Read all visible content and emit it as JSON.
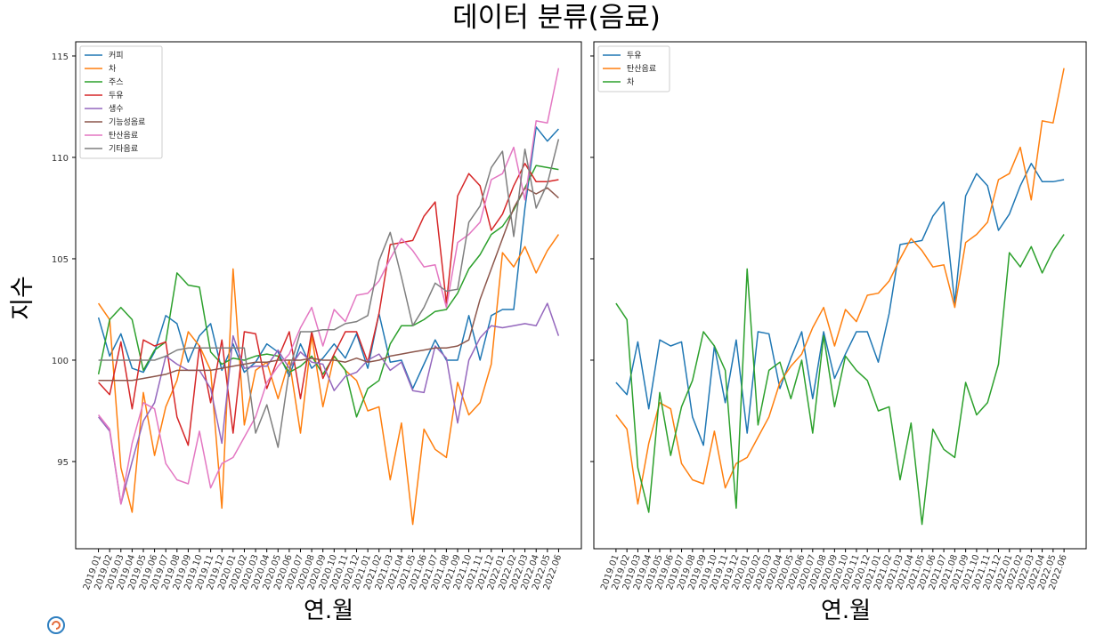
{
  "figure": {
    "title": "데이터 분류(음료)"
  },
  "colors": [
    "#1f77b4",
    "#ff7f0e",
    "#2ca02c",
    "#d62728",
    "#9467bd",
    "#8c564b",
    "#e377c2",
    "#7f7f7f"
  ],
  "chart_data": [
    {
      "type": "line",
      "xlabel": "연.월",
      "ylabel": "지수",
      "ylim": [
        90.7,
        115.7
      ],
      "yticks": [
        95,
        100,
        105,
        110,
        115
      ],
      "legend": "top-left",
      "grid": false,
      "x": [
        "2019.01",
        "2019.02",
        "2019.03",
        "2019.04",
        "2019.05",
        "2019.06",
        "2019.07",
        "2019.08",
        "2019.09",
        "2019.10",
        "2019.11",
        "2019.12",
        "2020.01",
        "2020.02",
        "2020.03",
        "2020.04",
        "2020.05",
        "2020.06",
        "2020.07",
        "2020.08",
        "2020.09",
        "2020.10",
        "2020.11",
        "2020.12",
        "2021.01",
        "2021.02",
        "2021.03",
        "2021.04",
        "2021.05",
        "2021.06",
        "2021.07",
        "2021.08",
        "2021.09",
        "2021.10",
        "2021.11",
        "2021.12",
        "2022.01",
        "2022.02",
        "2022.03",
        "2022.04",
        "2022.05",
        "2022.06"
      ],
      "series": [
        {
          "name": "커피",
          "values": [
            102.1,
            100.2,
            101.3,
            99.6,
            99.4,
            100.4,
            102.2,
            101.8,
            99.9,
            101.2,
            101.8,
            99.5,
            100.8,
            99.4,
            99.9,
            100.8,
            100.4,
            99.2,
            100.8,
            99.6,
            100.1,
            100.8,
            100.1,
            101.3,
            99.6,
            102.3,
            99.9,
            100.0,
            98.6,
            99.8,
            101.0,
            100.0,
            100.0,
            102.2,
            100.0,
            102.2,
            102.5,
            102.5,
            107.5,
            111.5,
            110.8,
            111.4
          ]
        },
        {
          "name": "차",
          "values": [
            102.8,
            102.0,
            94.7,
            92.5,
            98.4,
            95.3,
            97.7,
            99.0,
            101.4,
            100.7,
            99.5,
            92.7,
            104.5,
            96.8,
            99.5,
            99.9,
            98.1,
            100.0,
            96.4,
            101.2,
            97.7,
            100.2,
            99.5,
            99.0,
            97.5,
            97.7,
            94.1,
            96.9,
            91.9,
            96.6,
            95.6,
            95.2,
            98.9,
            97.3,
            97.9,
            99.8,
            105.3,
            104.6,
            105.6,
            104.3,
            105.4,
            106.2
          ]
        },
        {
          "name": "주스",
          "values": [
            99.3,
            102.0,
            102.6,
            102.0,
            99.5,
            100.5,
            100.9,
            104.3,
            103.7,
            103.6,
            100.4,
            99.8,
            100.1,
            100.0,
            100.2,
            100.3,
            100.2,
            99.4,
            99.7,
            100.2,
            99.3,
            100.2,
            99.5,
            97.2,
            98.6,
            99.0,
            100.8,
            101.7,
            101.7,
            102.0,
            102.4,
            102.5,
            103.3,
            104.5,
            105.2,
            106.2,
            106.6,
            107.4,
            108.5,
            109.6,
            109.5,
            109.4
          ]
        },
        {
          "name": "두유",
          "values": [
            98.9,
            98.3,
            100.9,
            97.6,
            101.0,
            100.7,
            100.9,
            97.2,
            95.8,
            100.7,
            97.9,
            101.0,
            96.4,
            101.4,
            101.3,
            98.6,
            100.1,
            101.4,
            98.1,
            101.4,
            99.1,
            100.3,
            101.4,
            101.4,
            99.9,
            102.3,
            105.7,
            105.8,
            105.9,
            107.1,
            107.8,
            102.8,
            108.1,
            109.2,
            108.6,
            106.4,
            107.2,
            108.6,
            109.7,
            108.8,
            108.8,
            108.9
          ]
        },
        {
          "name": "생수",
          "values": [
            97.2,
            96.5,
            92.9,
            95.0,
            97.0,
            97.9,
            100.2,
            99.8,
            99.5,
            99.5,
            98.6,
            95.9,
            101.2,
            99.6,
            99.7,
            99.7,
            100.5,
            99.6,
            100.4,
            99.9,
            99.8,
            98.5,
            99.2,
            99.4,
            100.0,
            100.3,
            99.5,
            99.9,
            98.5,
            98.4,
            100.7,
            100.1,
            96.9,
            100.0,
            101.1,
            101.7,
            101.6,
            101.7,
            101.8,
            101.7,
            102.8,
            101.2
          ]
        },
        {
          "name": "기능성음료",
          "values": [
            99.0,
            99.0,
            99.0,
            99.0,
            99.1,
            99.2,
            99.3,
            99.5,
            99.5,
            99.5,
            99.5,
            99.6,
            99.7,
            99.8,
            99.9,
            99.9,
            100.0,
            100.0,
            100.0,
            100.1,
            100.0,
            100.0,
            99.9,
            100.1,
            99.9,
            100.0,
            100.2,
            100.3,
            100.4,
            100.5,
            100.6,
            100.6,
            100.7,
            101.0,
            103.0,
            104.5,
            106.0,
            107.5,
            108.5,
            108.2,
            108.5,
            108.0
          ]
        },
        {
          "name": "탄산음료",
          "values": [
            97.3,
            96.6,
            92.9,
            95.9,
            97.9,
            97.6,
            94.9,
            94.1,
            93.9,
            96.5,
            93.7,
            94.9,
            95.2,
            96.2,
            97.2,
            98.9,
            99.7,
            100.3,
            101.6,
            102.6,
            100.7,
            102.5,
            101.9,
            103.2,
            103.3,
            103.9,
            105.0,
            106.0,
            105.4,
            104.6,
            104.7,
            102.6,
            105.8,
            106.2,
            106.8,
            108.9,
            109.2,
            110.5,
            107.9,
            111.8,
            111.7,
            114.4
          ]
        },
        {
          "name": "기타음료",
          "values": [
            100.0,
            100.0,
            100.0,
            100.0,
            100.0,
            100.0,
            100.2,
            100.5,
            100.6,
            100.6,
            100.6,
            100.6,
            100.6,
            100.6,
            96.4,
            97.8,
            95.7,
            99.5,
            101.4,
            101.4,
            101.5,
            101.5,
            101.8,
            101.9,
            102.2,
            104.9,
            106.3,
            104.1,
            101.7,
            102.6,
            103.8,
            103.4,
            103.5,
            106.8,
            107.6,
            109.5,
            110.3,
            106.1,
            110.4,
            107.5,
            108.7,
            110.9
          ]
        }
      ]
    },
    {
      "type": "line",
      "xlabel": "연.월",
      "ylim": [
        90.7,
        115.7
      ],
      "legend": "top-left",
      "grid": false,
      "x": [
        "2019.01",
        "2019.02",
        "2019.03",
        "2019.04",
        "2019.05",
        "2019.06",
        "2019.07",
        "2019.08",
        "2019.09",
        "2019.10",
        "2019.11",
        "2019.12",
        "2020.01",
        "2020.02",
        "2020.03",
        "2020.04",
        "2020.05",
        "2020.06",
        "2020.07",
        "2020.08",
        "2020.09",
        "2020.10",
        "2020.11",
        "2020.12",
        "2021.01",
        "2021.02",
        "2021.03",
        "2021.04",
        "2021.05",
        "2021.06",
        "2021.07",
        "2021.08",
        "2021.09",
        "2021.10",
        "2021.11",
        "2021.12",
        "2022.01",
        "2022.02",
        "2022.03",
        "2022.04",
        "2022.05",
        "2022.06"
      ],
      "series": [
        {
          "name": "두유",
          "values": [
            98.9,
            98.3,
            100.9,
            97.6,
            101.0,
            100.7,
            100.9,
            97.2,
            95.8,
            100.7,
            97.9,
            101.0,
            96.4,
            101.4,
            101.3,
            98.6,
            100.1,
            101.4,
            98.1,
            101.4,
            99.1,
            100.3,
            101.4,
            101.4,
            99.9,
            102.3,
            105.7,
            105.8,
            105.9,
            107.1,
            107.8,
            102.8,
            108.1,
            109.2,
            108.6,
            106.4,
            107.2,
            108.6,
            109.7,
            108.8,
            108.8,
            108.9
          ]
        },
        {
          "name": "탄산음료",
          "values": [
            97.3,
            96.6,
            92.9,
            95.9,
            97.9,
            97.6,
            94.9,
            94.1,
            93.9,
            96.5,
            93.7,
            94.9,
            95.2,
            96.2,
            97.2,
            98.9,
            99.7,
            100.3,
            101.6,
            102.6,
            100.7,
            102.5,
            101.9,
            103.2,
            103.3,
            103.9,
            105.0,
            106.0,
            105.4,
            104.6,
            104.7,
            102.6,
            105.8,
            106.2,
            106.8,
            108.9,
            109.2,
            110.5,
            107.9,
            111.8,
            111.7,
            114.4
          ]
        },
        {
          "name": "차",
          "values": [
            102.8,
            102.0,
            94.7,
            92.5,
            98.4,
            95.3,
            97.7,
            99.0,
            101.4,
            100.7,
            99.5,
            92.7,
            104.5,
            96.8,
            99.5,
            99.9,
            98.1,
            100.0,
            96.4,
            101.2,
            97.7,
            100.2,
            99.5,
            99.0,
            97.5,
            97.7,
            94.1,
            96.9,
            91.9,
            96.6,
            95.6,
            95.2,
            98.9,
            97.3,
            97.9,
            99.8,
            105.3,
            104.6,
            105.6,
            104.3,
            105.4,
            106.2
          ]
        }
      ]
    }
  ]
}
